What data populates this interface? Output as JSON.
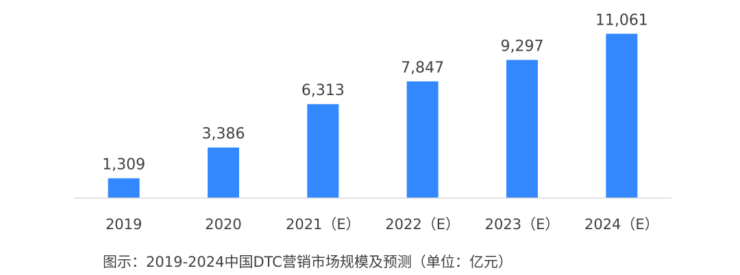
{
  "chart_data": {
    "type": "bar",
    "title": "",
    "xlabel": "",
    "ylabel": "",
    "categories": [
      "2019",
      "2020",
      "2021（E）",
      "2022（E）",
      "2023（E）",
      "2024（E）"
    ],
    "values": [
      1309,
      3386,
      6313,
      7847,
      9297,
      11061
    ],
    "value_labels": [
      "1,309",
      "3,386",
      "6,313",
      "7,847",
      "9,297",
      "11,061"
    ],
    "ylim": [
      0,
      12000
    ],
    "grid": false,
    "legend": "none",
    "bar_color": "#3388ff",
    "axis_color": "#d9d9d9"
  },
  "caption": "图示：2019-2024中国DTC营销市场规模及预测（单位：亿元）"
}
